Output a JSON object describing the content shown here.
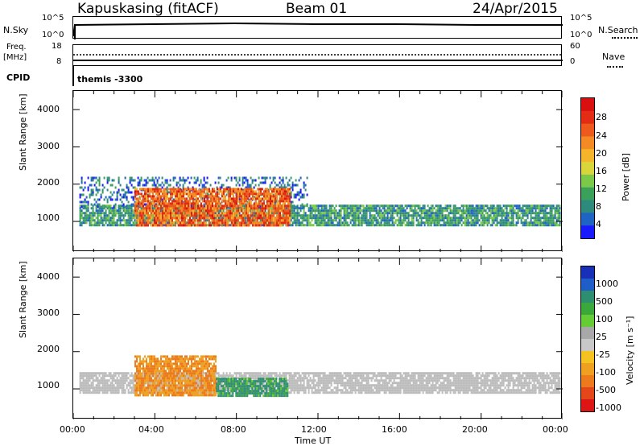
{
  "header": {
    "station": "Kapuskasing (fitACF)",
    "beam": "Beam 01",
    "date": "24/Apr/2015"
  },
  "top_panels": {
    "nsky_label": "N.Sky",
    "left_ticks_top": [
      "10^5",
      "10^0"
    ],
    "right_ticks_top": [
      "10^5",
      "10^0"
    ],
    "nsearch_label": "N.Search",
    "freq_label": "Freq.",
    "freq_unit": "[MHz]",
    "freq_ticks": [
      "18",
      "8"
    ],
    "nave_ticks": [
      "60",
      "0"
    ],
    "nave_label": "Nave",
    "cpid_label": "CPID",
    "cpid_value": "themis -3300"
  },
  "chart_data": [
    {
      "type": "heatmap",
      "title": "",
      "ylabel": "Slant Range [km]",
      "xlabel": "",
      "y_ticks": [
        "1000",
        "2000",
        "3000",
        "4000"
      ],
      "ylim": [
        180,
        4500
      ],
      "xlim_hours": [
        0,
        24
      ],
      "colorbar": {
        "label": "Power [dB]",
        "ticks": [
          "4",
          "8",
          "12",
          "16",
          "20",
          "24",
          "28"
        ],
        "colors": [
          "#1a1aff",
          "#1f63c4",
          "#2f8a7e",
          "#3aa05a",
          "#7cc94a",
          "#d8d63b",
          "#f5b52a",
          "#f38a24",
          "#ee5a1c",
          "#e42b14",
          "#da0f0f"
        ]
      },
      "bands": [
        {
          "name": "main scatter band",
          "start_hour": 0.3,
          "end_hour": 23.9,
          "range_low": 900,
          "range_high": 1450,
          "power_db": 9
        },
        {
          "name": "upper echo band",
          "start_hour": 0.3,
          "end_hour": 11.5,
          "range_low": 1400,
          "range_high": 2200,
          "power_db": 6
        },
        {
          "name": "strong echoes",
          "start_hour": 3.0,
          "end_hour": 10.6,
          "range_low": 900,
          "range_high": 1900,
          "power_db": 24
        }
      ]
    },
    {
      "type": "heatmap",
      "title": "",
      "ylabel": "Slant Range [km]",
      "xlabel": "Time UT",
      "x_ticks": [
        "00:00",
        "04:00",
        "08:00",
        "12:00",
        "16:00",
        "20:00",
        "00:00"
      ],
      "y_ticks": [
        "1000",
        "2000",
        "3000",
        "4000"
      ],
      "ylim": [
        180,
        4500
      ],
      "xlim_hours": [
        0,
        24
      ],
      "colorbar": {
        "label": "Velocity [m s⁻¹]",
        "ticks": [
          "1000",
          "500",
          "100",
          "25",
          "-25",
          "-100",
          "-500",
          "-1000"
        ],
        "colors": [
          "#1830b8",
          "#1f5ec9",
          "#2e8f70",
          "#3aa83a",
          "#65cc35",
          "#a8a8a8",
          "#c8c8c8",
          "#f5c321",
          "#f0a020",
          "#ee7a1e",
          "#e5461a",
          "#dd1515"
        ]
      },
      "ground_scatter_color": "#bbbbbb",
      "bands": [
        {
          "name": "ground scatter",
          "start_hour": 0.3,
          "end_hour": 23.9,
          "range_low": 900,
          "range_high": 1450,
          "velocity": 0
        },
        {
          "name": "negative velocity echoes",
          "start_hour": 3.0,
          "end_hour": 7.0,
          "range_low": 800,
          "range_high": 1900,
          "velocity": -300
        },
        {
          "name": "positive velocity echoes",
          "start_hour": 7.0,
          "end_hour": 10.5,
          "range_low": 800,
          "range_high": 1300,
          "velocity": 150
        }
      ]
    }
  ]
}
